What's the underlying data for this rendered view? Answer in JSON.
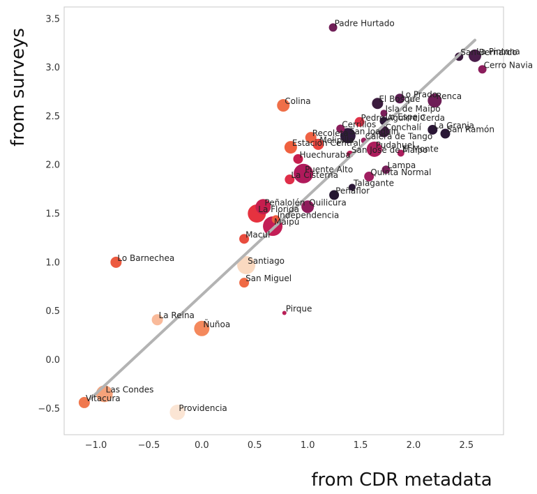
{
  "chart_data": {
    "type": "scatter",
    "title": "",
    "xlabel": "from CDR metadata",
    "ylabel": "from surveys",
    "xlim": [
      -1.3,
      2.85
    ],
    "ylim": [
      -0.77,
      3.62
    ],
    "xticks": [
      -1.0,
      -0.5,
      0.0,
      0.5,
      1.0,
      1.5,
      2.0,
      2.5
    ],
    "xtick_labels": [
      "−1.0",
      "−0.5",
      "0.0",
      "0.5",
      "1.0",
      "1.5",
      "2.0",
      "2.5"
    ],
    "yticks": [
      -0.5,
      0.0,
      0.5,
      1.0,
      1.5,
      2.0,
      2.5,
      3.0,
      3.5
    ],
    "ytick_labels": [
      "−0.5",
      "0.0",
      "0.5",
      "1.0",
      "1.5",
      "2.0",
      "2.5",
      "3.0",
      "3.5"
    ],
    "grid": false,
    "fit_line": {
      "x": [
        -1.05,
        2.58
      ],
      "y": [
        -0.4,
        3.28
      ],
      "color": "#b3b3b3"
    },
    "points": [
      {
        "label": "Padre Hurtado",
        "x": 1.24,
        "y": 3.41,
        "size": 6,
        "color": "#701f57"
      },
      {
        "label": "La Pintana",
        "x": 2.58,
        "y": 3.12,
        "size": 9,
        "color": "#4a1d4a"
      },
      {
        "label": "San Bernardo",
        "x": 2.43,
        "y": 3.11,
        "size": 6,
        "color": "#3a1a3d"
      },
      {
        "label": "Cerro Navia",
        "x": 2.65,
        "y": 2.98,
        "size": 6,
        "color": "#8b1d5c"
      },
      {
        "label": "Colina",
        "x": 0.77,
        "y": 2.61,
        "size": 9,
        "color": "#ef6f48"
      },
      {
        "label": "Lo Prado",
        "x": 1.87,
        "y": 2.68,
        "size": 7,
        "color": "#5c1e53"
      },
      {
        "label": "Renca",
        "x": 2.2,
        "y": 2.66,
        "size": 10,
        "color": "#6e1f57"
      },
      {
        "label": "El Bosque",
        "x": 1.66,
        "y": 2.63,
        "size": 8,
        "color": "#3b1c3e"
      },
      {
        "label": "Isla de Maipo",
        "x": 1.72,
        "y": 2.53,
        "size": 5,
        "color": "#7a1f59"
      },
      {
        "label": "Pedro Aguirre Cerda",
        "x": 1.49,
        "y": 2.44,
        "size": 7,
        "color": "#e03349"
      },
      {
        "label": "Cerrillos",
        "x": 1.31,
        "y": 2.37,
        "size": 6,
        "color": "#8a1e5b"
      },
      {
        "label": "Lo Espejo",
        "x": 1.72,
        "y": 2.45,
        "size": 6,
        "color": "#2d1738"
      },
      {
        "label": "Conchalí",
        "x": 1.72,
        "y": 2.34,
        "size": 8,
        "color": "#3d1b40"
      },
      {
        "label": "La Granja",
        "x": 2.18,
        "y": 2.36,
        "size": 7,
        "color": "#2b1736"
      },
      {
        "label": "San Ramón",
        "x": 2.3,
        "y": 2.32,
        "size": 7,
        "color": "#2a1736"
      },
      {
        "label": "Recoleta",
        "x": 1.03,
        "y": 2.28,
        "size": 8,
        "color": "#ef6244"
      },
      {
        "label": "San Joaquín",
        "x": 1.38,
        "y": 2.3,
        "size": 11,
        "color": "#2f1a3c"
      },
      {
        "label": "Calera de Tango",
        "x": 1.53,
        "y": 2.25,
        "size": 4,
        "color": "#9b1f5e"
      },
      {
        "label": "Melipilla",
        "x": 1.1,
        "y": 2.21,
        "size": 8,
        "color": "#e9453e"
      },
      {
        "label": "Estación Central",
        "x": 0.84,
        "y": 2.18,
        "size": 9,
        "color": "#ef613f"
      },
      {
        "label": "Pudahuel",
        "x": 1.63,
        "y": 2.16,
        "size": 11,
        "color": "#ac1d5c"
      },
      {
        "label": "San José de Maipo",
        "x": 1.4,
        "y": 2.11,
        "size": 5,
        "color": "#b81f57"
      },
      {
        "label": "El Monte",
        "x": 1.88,
        "y": 2.12,
        "size": 5,
        "color": "#ab1e5d"
      },
      {
        "label": "Huechuraba",
        "x": 0.91,
        "y": 2.06,
        "size": 7,
        "color": "#c61e4e"
      },
      {
        "label": "Puente Alto",
        "x": 0.96,
        "y": 1.91,
        "size": 14,
        "color": "#b01a5b"
      },
      {
        "label": "Lampa",
        "x": 1.74,
        "y": 1.95,
        "size": 6,
        "color": "#781f5a"
      },
      {
        "label": "Quinta Normal",
        "x": 1.58,
        "y": 1.88,
        "size": 7,
        "color": "#a01e60"
      },
      {
        "label": "La Cisterna",
        "x": 0.83,
        "y": 1.85,
        "size": 7,
        "color": "#df2e49"
      },
      {
        "label": "Talagante",
        "x": 1.42,
        "y": 1.77,
        "size": 5,
        "color": "#2b1737"
      },
      {
        "label": "Peñaflor",
        "x": 1.25,
        "y": 1.69,
        "size": 7,
        "color": "#241631"
      },
      {
        "label": "Peñalolén",
        "x": 0.58,
        "y": 1.57,
        "size": 11,
        "color": "#c61e4e"
      },
      {
        "label": "Quilicura",
        "x": 1.0,
        "y": 1.57,
        "size": 9,
        "color": "#8f1c5b"
      },
      {
        "label": "La Florida",
        "x": 0.52,
        "y": 1.5,
        "size": 13,
        "color": "#e6323f"
      },
      {
        "label": "Independencia",
        "x": 0.7,
        "y": 1.44,
        "size": 6,
        "color": "#ef5b3f"
      },
      {
        "label": "Maipú",
        "x": 0.67,
        "y": 1.37,
        "size": 14,
        "color": "#c31e56"
      },
      {
        "label": "Macul",
        "x": 0.4,
        "y": 1.24,
        "size": 7,
        "color": "#e84c3e"
      },
      {
        "label": "Lo Barnechea",
        "x": -0.81,
        "y": 1.0,
        "size": 8,
        "color": "#ec5a3f"
      },
      {
        "label": "Santiago",
        "x": 0.42,
        "y": 0.97,
        "size": 13,
        "color": "#fad9c0"
      },
      {
        "label": "San Miguel",
        "x": 0.4,
        "y": 0.79,
        "size": 7,
        "color": "#ef6a45"
      },
      {
        "label": "Pirque",
        "x": 0.78,
        "y": 0.48,
        "size": 3,
        "color": "#b81f57"
      },
      {
        "label": "La Reina",
        "x": -0.42,
        "y": 0.41,
        "size": 8,
        "color": "#f9ba9a"
      },
      {
        "label": "Ñuñoa",
        "x": 0.0,
        "y": 0.32,
        "size": 11,
        "color": "#f4895d"
      },
      {
        "label": "Las Condes",
        "x": -0.92,
        "y": -0.35,
        "size": 12,
        "color": "#f6a27a"
      },
      {
        "label": "Vitacura",
        "x": -1.11,
        "y": -0.44,
        "size": 8,
        "color": "#f0784e"
      },
      {
        "label": "Providencia",
        "x": -0.23,
        "y": -0.54,
        "size": 11,
        "color": "#fbe5d4"
      }
    ]
  }
}
